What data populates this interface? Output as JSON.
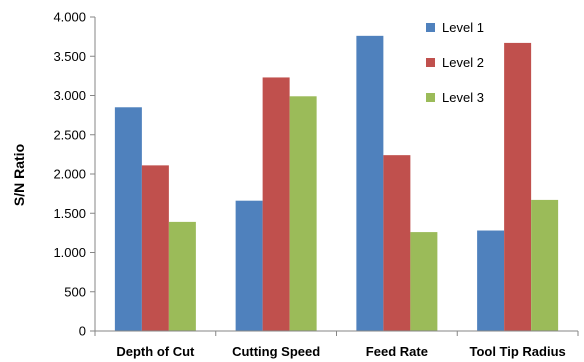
{
  "chart_data": {
    "type": "bar",
    "ylabel": "S/N Ratio",
    "xlabel": "",
    "ylim": [
      0,
      4000
    ],
    "yticks": [
      0,
      500,
      1000,
      1500,
      2000,
      2500,
      3000,
      3500,
      4000
    ],
    "ytick_labels": [
      "0",
      "500",
      "1.000",
      "1.500",
      "2.000",
      "2.500",
      "3.000",
      "3.500",
      "4.000"
    ],
    "categories": [
      "Depth of Cut",
      "Cutting Speed",
      "Feed Rate",
      "Tool Tip Radius"
    ],
    "series": [
      {
        "name": "Level 1",
        "color": "#4F81BD",
        "values": [
          2850,
          1660,
          3760,
          1280
        ]
      },
      {
        "name": "Level 2",
        "color": "#C0504D",
        "values": [
          2110,
          3230,
          2240,
          3670
        ]
      },
      {
        "name": "Level 3",
        "color": "#9BBB59",
        "values": [
          1390,
          2990,
          1260,
          1670
        ]
      }
    ],
    "legend_position": "top-right",
    "grid": false
  }
}
